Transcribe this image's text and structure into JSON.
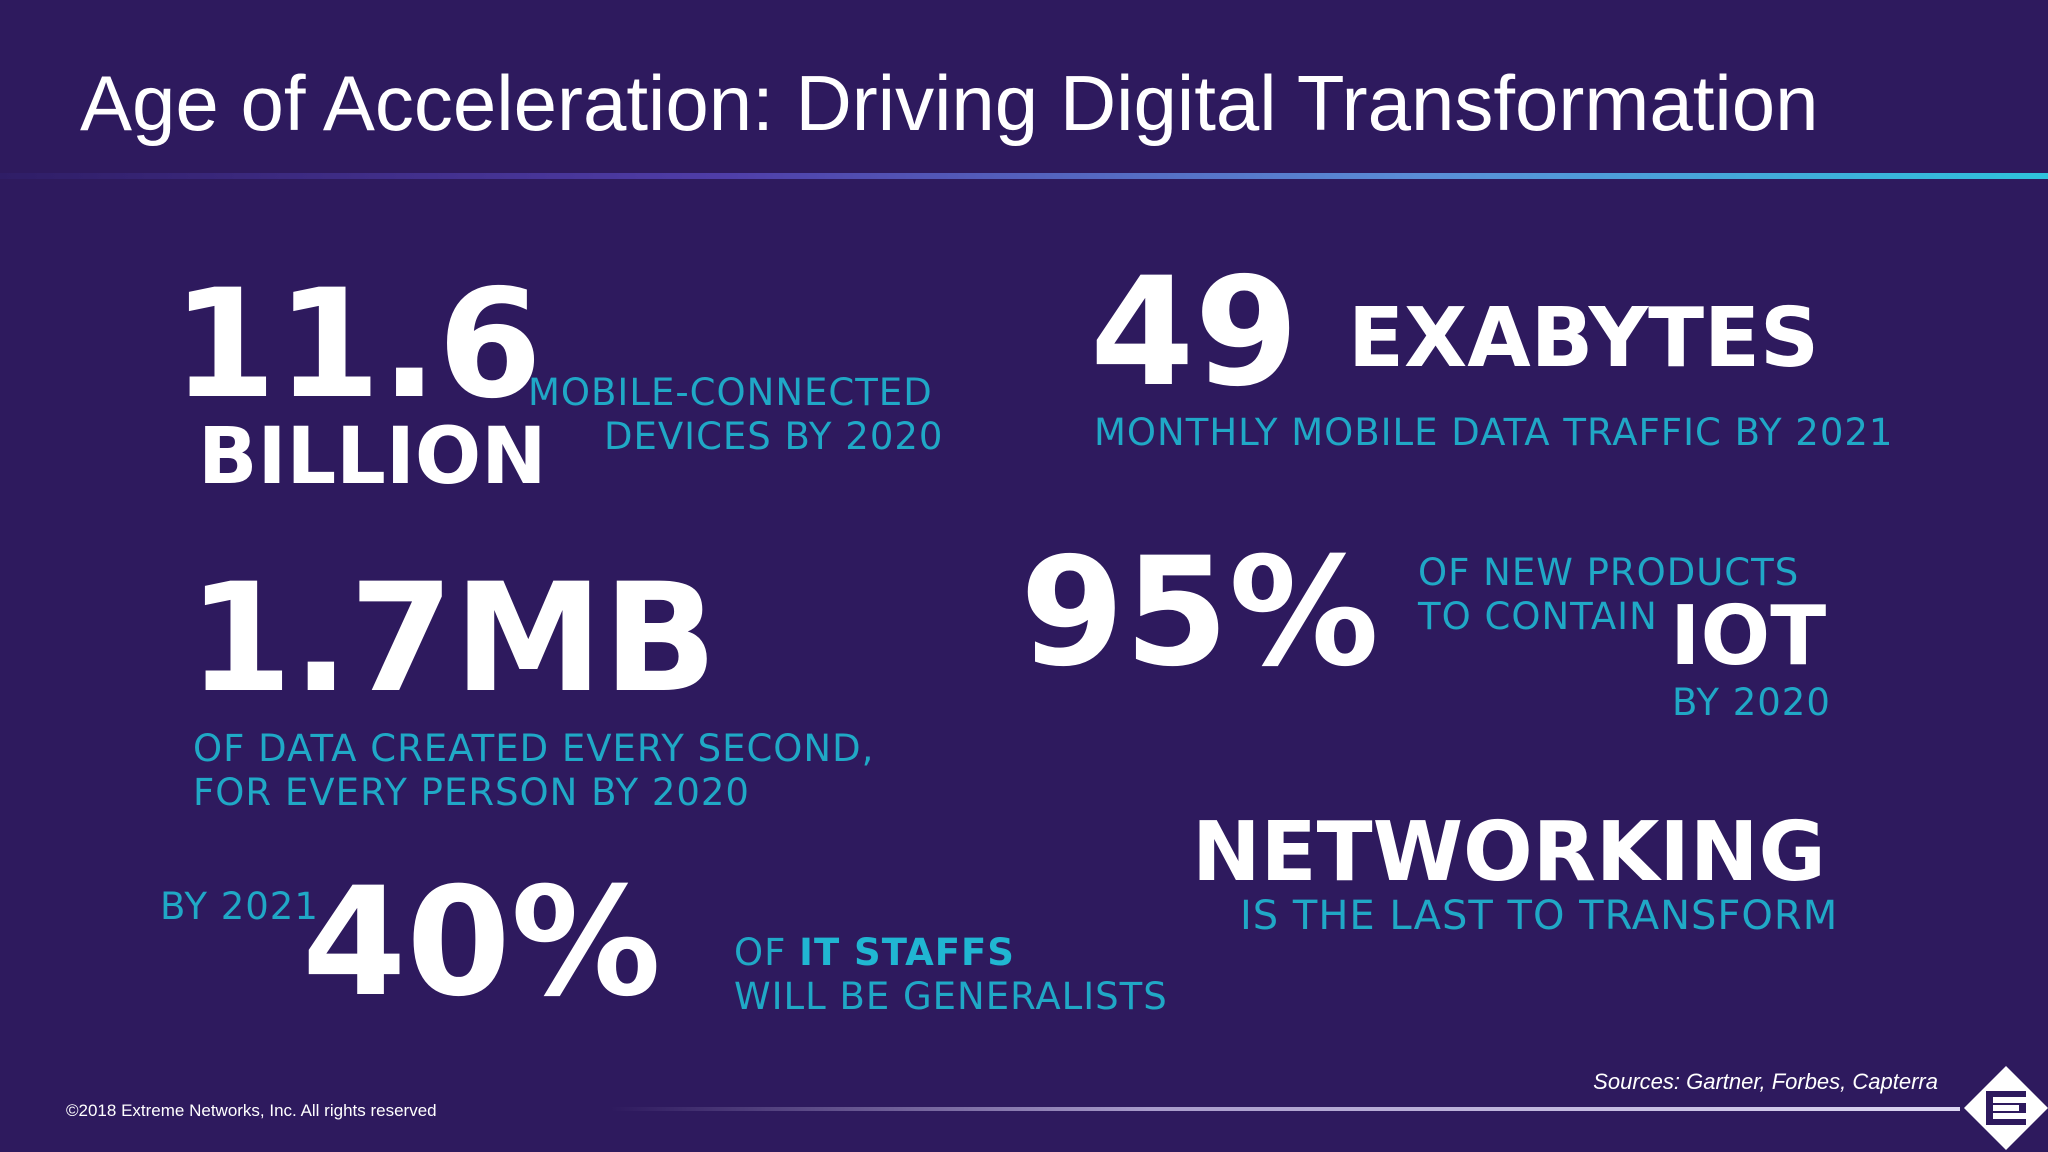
{
  "slide": {
    "title": "Age of Acceleration: Driving Digital Transformation"
  },
  "stats": {
    "devices": {
      "number": "11.6",
      "unit": "BILLION",
      "caption_line1": "MOBILE-CONNECTED",
      "caption_line2": "DEVICES BY 2020"
    },
    "traffic": {
      "number": "49",
      "unit": "EXABYTES",
      "caption": "MONTHLY MOBILE DATA TRAFFIC BY 2021"
    },
    "data": {
      "number": "1.7MB",
      "caption_line1": "OF DATA CREATED EVERY SECOND,",
      "caption_line2": "FOR EVERY PERSON BY 2020"
    },
    "iot": {
      "number": "95%",
      "caption_line1": "OF NEW PRODUCTS",
      "caption_line2": "TO CONTAIN",
      "emphasis": "IOT",
      "caption_line3": "BY 2020"
    },
    "it_staff": {
      "prefix": "BY 2021",
      "number": "40%",
      "caption_of": "OF",
      "caption_bold": "IT STAFFS",
      "caption_line2": "WILL BE GENERALISTS"
    },
    "networking": {
      "headline": "NETWORKING",
      "caption": "IS THE LAST TO TRANSFORM"
    }
  },
  "footer": {
    "copyright": "©2018 Extreme Networks, Inc.  All rights reserved",
    "sources": "Sources: Gartner, Forbes, Capterra"
  },
  "logo": {
    "icon": "extreme-networks-logo-icon",
    "color": "#ffffff"
  },
  "colors": {
    "background": "#2e1a5e",
    "accent": "#20a8c6",
    "text": "#ffffff"
  }
}
